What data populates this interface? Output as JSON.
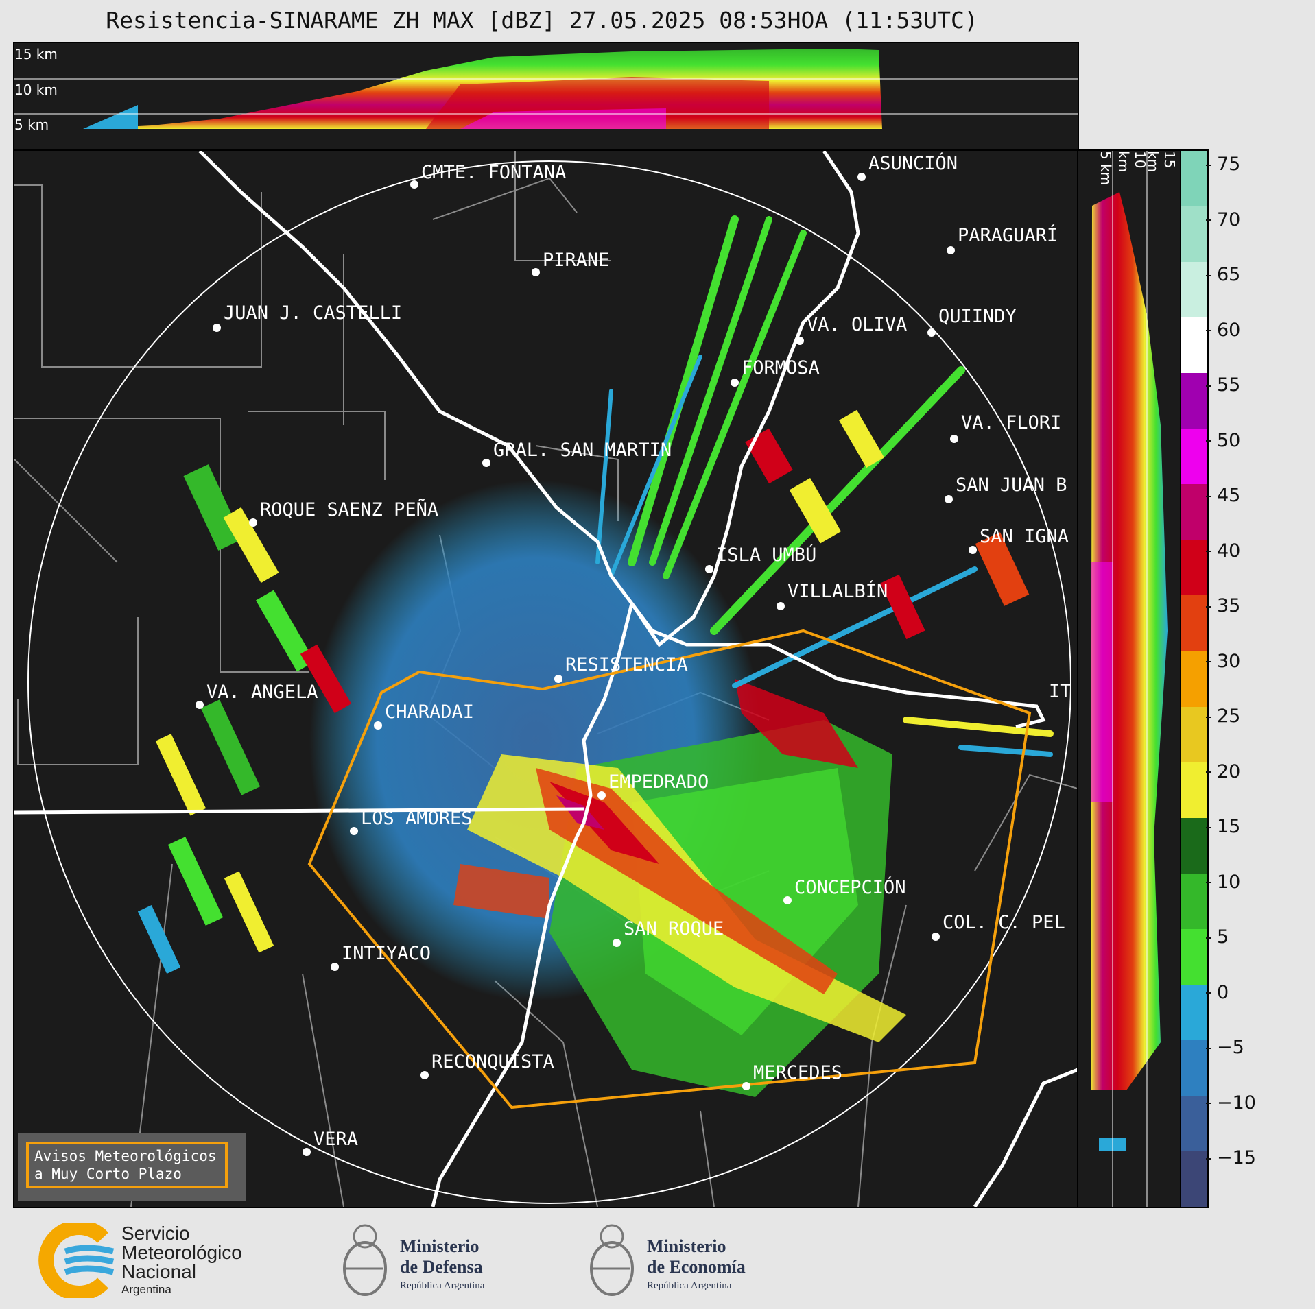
{
  "title": "Resistencia-SINARAME ZH MAX [dBZ] 27.05.2025 08:53HOA (11:53UTC)",
  "top_panel": {
    "alt_labels": [
      "15 km",
      "10 km",
      "5 km"
    ]
  },
  "right_panel": {
    "alt_labels": [
      "5 km",
      "10 km",
      "15 km"
    ]
  },
  "colorbar": {
    "ticks": [
      "75",
      "70",
      "65",
      "60",
      "55",
      "50",
      "45",
      "40",
      "35",
      "30",
      "25",
      "20",
      "15",
      "10",
      "5",
      "0",
      "−5",
      "−10",
      "−15"
    ],
    "stops": [
      "#7fd4b8",
      "#9fe0c8",
      "#c9efe0",
      "#ffffff",
      "#a000b0",
      "#ee00ee",
      "#c0006a",
      "#d00018",
      "#e24010",
      "#f5a000",
      "#e8c820",
      "#f0ee30",
      "#1a6a1a",
      "#34b82a",
      "#44e030",
      "#2aa8d8",
      "#2e80c0",
      "#3a5f9a",
      "#3c4676"
    ]
  },
  "cities": [
    {
      "name": "CMTE. FONTANA"
    },
    {
      "name": "ASUNCIÓN"
    },
    {
      "name": "PIRANE"
    },
    {
      "name": "PARAGUARÍ"
    },
    {
      "name": "JUAN J. CASTELLI"
    },
    {
      "name": "VA. OLIVA"
    },
    {
      "name": "QUIINDY"
    },
    {
      "name": "FORMOSA"
    },
    {
      "name": "VA. FLORI"
    },
    {
      "name": "GRAL. SAN MARTIN"
    },
    {
      "name": "SAN JUAN B"
    },
    {
      "name": "ROQUE SAENZ PEÑA"
    },
    {
      "name": "SAN IGNA"
    },
    {
      "name": "ISLA UMBÚ"
    },
    {
      "name": "VILLALBÍN"
    },
    {
      "name": "RESISTENCIA"
    },
    {
      "name": "VA. ANGELA"
    },
    {
      "name": "CHARADAI"
    },
    {
      "name": "IT"
    },
    {
      "name": "EMPEDRADO"
    },
    {
      "name": "LOS AMORES"
    },
    {
      "name": "CONCEPCIÓN"
    },
    {
      "name": "SAN ROQUE"
    },
    {
      "name": "COL. C. PEL"
    },
    {
      "name": "INTIYACO"
    },
    {
      "name": "RECONQUISTA"
    },
    {
      "name": "MERCEDES"
    },
    {
      "name": "VERA"
    }
  ],
  "alert_legend": {
    "line1": "Avisos Meteorológicos",
    "line2": "a Muy Corto Plazo"
  },
  "footer": {
    "smn": {
      "line1": "Servicio",
      "line2": "Meteorológico",
      "line3": "Nacional",
      "line4": "Argentina"
    },
    "defensa": {
      "line1": "Ministerio",
      "line2": "de Defensa",
      "line3": "República Argentina"
    },
    "economia": {
      "line1": "Ministerio",
      "line2": "de Economía",
      "line3": "República Argentina"
    }
  },
  "colors": {
    "alert_polygon": "#f5a00c",
    "background": "#1b1b1b",
    "frame": "#e6e6e6"
  }
}
